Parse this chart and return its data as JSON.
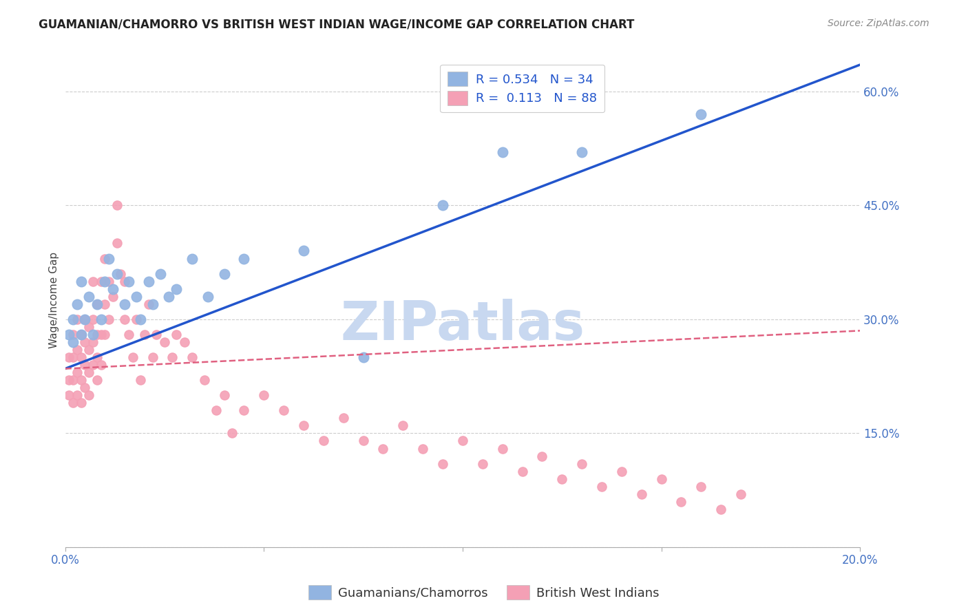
{
  "title": "GUAMANIAN/CHAMORRO VS BRITISH WEST INDIAN WAGE/INCOME GAP CORRELATION CHART",
  "source": "Source: ZipAtlas.com",
  "ylabel": "Wage/Income Gap",
  "xlim": [
    0.0,
    0.2
  ],
  "ylim": [
    0.0,
    0.65
  ],
  "title_color": "#222222",
  "source_color": "#888888",
  "axis_label_color": "#444444",
  "tick_color": "#4472c4",
  "grid_color": "#cccccc",
  "background_color": "#ffffff",
  "watermark_text": "ZIPatlas",
  "watermark_color": "#c8d8f0",
  "legend": {
    "R1": "0.534",
    "N1": "34",
    "R2": "0.113",
    "N2": "88",
    "color1": "#92b4e1",
    "color2": "#f4a0b5"
  },
  "blue_scatter": {
    "x": [
      0.001,
      0.002,
      0.002,
      0.003,
      0.004,
      0.004,
      0.005,
      0.006,
      0.007,
      0.008,
      0.009,
      0.01,
      0.011,
      0.012,
      0.013,
      0.015,
      0.016,
      0.018,
      0.019,
      0.021,
      0.022,
      0.024,
      0.026,
      0.028,
      0.032,
      0.036,
      0.04,
      0.045,
      0.06,
      0.075,
      0.095,
      0.11,
      0.13,
      0.16
    ],
    "y": [
      0.28,
      0.3,
      0.27,
      0.32,
      0.35,
      0.28,
      0.3,
      0.33,
      0.28,
      0.32,
      0.3,
      0.35,
      0.38,
      0.34,
      0.36,
      0.32,
      0.35,
      0.33,
      0.3,
      0.35,
      0.32,
      0.36,
      0.33,
      0.34,
      0.38,
      0.33,
      0.36,
      0.38,
      0.39,
      0.25,
      0.45,
      0.52,
      0.52,
      0.57
    ]
  },
  "pink_scatter": {
    "x": [
      0.001,
      0.001,
      0.001,
      0.002,
      0.002,
      0.002,
      0.002,
      0.003,
      0.003,
      0.003,
      0.003,
      0.004,
      0.004,
      0.004,
      0.004,
      0.005,
      0.005,
      0.005,
      0.005,
      0.006,
      0.006,
      0.006,
      0.006,
      0.007,
      0.007,
      0.007,
      0.007,
      0.008,
      0.008,
      0.008,
      0.008,
      0.009,
      0.009,
      0.009,
      0.01,
      0.01,
      0.01,
      0.011,
      0.011,
      0.012,
      0.013,
      0.013,
      0.014,
      0.015,
      0.015,
      0.016,
      0.017,
      0.018,
      0.019,
      0.02,
      0.021,
      0.022,
      0.023,
      0.025,
      0.027,
      0.028,
      0.03,
      0.032,
      0.035,
      0.038,
      0.04,
      0.042,
      0.045,
      0.05,
      0.055,
      0.06,
      0.065,
      0.07,
      0.075,
      0.08,
      0.085,
      0.09,
      0.095,
      0.1,
      0.105,
      0.11,
      0.115,
      0.12,
      0.125,
      0.13,
      0.135,
      0.14,
      0.145,
      0.15,
      0.155,
      0.16,
      0.165,
      0.17
    ],
    "y": [
      0.25,
      0.22,
      0.2,
      0.28,
      0.25,
      0.22,
      0.19,
      0.3,
      0.26,
      0.23,
      0.2,
      0.28,
      0.25,
      0.22,
      0.19,
      0.3,
      0.27,
      0.24,
      0.21,
      0.29,
      0.26,
      0.23,
      0.2,
      0.35,
      0.3,
      0.27,
      0.24,
      0.32,
      0.28,
      0.25,
      0.22,
      0.35,
      0.28,
      0.24,
      0.38,
      0.32,
      0.28,
      0.35,
      0.3,
      0.33,
      0.45,
      0.4,
      0.36,
      0.35,
      0.3,
      0.28,
      0.25,
      0.3,
      0.22,
      0.28,
      0.32,
      0.25,
      0.28,
      0.27,
      0.25,
      0.28,
      0.27,
      0.25,
      0.22,
      0.18,
      0.2,
      0.15,
      0.18,
      0.2,
      0.18,
      0.16,
      0.14,
      0.17,
      0.14,
      0.13,
      0.16,
      0.13,
      0.11,
      0.14,
      0.11,
      0.13,
      0.1,
      0.12,
      0.09,
      0.11,
      0.08,
      0.1,
      0.07,
      0.09,
      0.06,
      0.08,
      0.05,
      0.07
    ]
  },
  "blue_line": {
    "x0": 0.0,
    "y0": 0.235,
    "x1": 0.2,
    "y1": 0.635,
    "color": "#2255cc",
    "lw": 2.5
  },
  "pink_line": {
    "x0": 0.0,
    "y0": 0.235,
    "x1": 0.2,
    "y1": 0.285,
    "color": "#e06080",
    "lw": 1.8
  }
}
